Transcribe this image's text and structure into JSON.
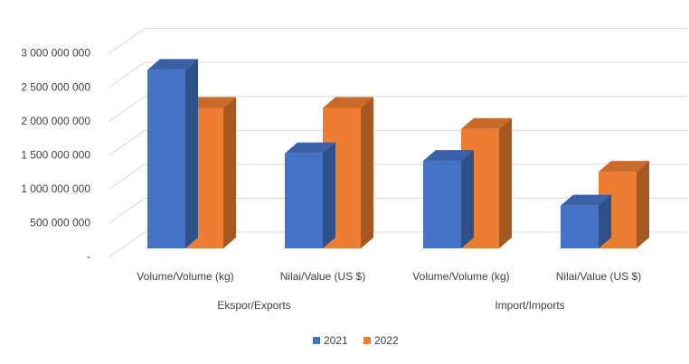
{
  "chart_data": {
    "type": "bar3d",
    "categories": [
      "Volume/Volume (kg)",
      "Nilai/Value (US $)",
      "Volume/Volume (kg)",
      "Nilai/Value (US $)"
    ],
    "groups": [
      "Ekspor/Exports",
      "Import/Imports"
    ],
    "series": [
      {
        "name": "2021",
        "color": "#4472c4",
        "values": [
          2630000000,
          1400000000,
          1290000000,
          630000000
        ]
      },
      {
        "name": "2022",
        "color": "#ed7d31",
        "values": [
          2070000000,
          2070000000,
          1760000000,
          1130000000
        ]
      }
    ],
    "ylim": [
      0,
      3500000000
    ],
    "yticks": [
      {
        "value": 0,
        "label": "-"
      },
      {
        "value": 500000000,
        "label": "500 000 000"
      },
      {
        "value": 1000000000,
        "label": "1 000 000 000"
      },
      {
        "value": 1500000000,
        "label": "1 500 000 000"
      },
      {
        "value": 2000000000,
        "label": "2 000 000 000"
      },
      {
        "value": 2500000000,
        "label": "2 500 000 000"
      },
      {
        "value": 3000000000,
        "label": "3 000 000 000"
      }
    ],
    "grid": true,
    "legend": "bottom"
  }
}
